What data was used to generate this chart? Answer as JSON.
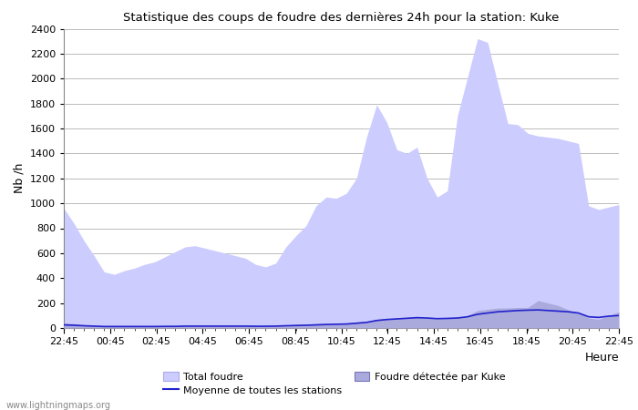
{
  "title": "Statistique des coups de foudre des dernières 24h pour la station: Kuke",
  "xlabel": "Heure",
  "ylabel": "Nb /h",
  "watermark": "www.lightningmaps.org",
  "x_labels": [
    "22:45",
    "00:45",
    "02:45",
    "04:45",
    "06:45",
    "08:45",
    "10:45",
    "12:45",
    "14:45",
    "16:45",
    "18:45",
    "20:45",
    "22:45"
  ],
  "ylim": [
    0,
    2400
  ],
  "yticks": [
    0,
    200,
    400,
    600,
    800,
    1000,
    1200,
    1400,
    1600,
    1800,
    2000,
    2200,
    2400
  ],
  "total_foudre_color": "#ccccff",
  "total_foudre_edge": "#aaaaee",
  "kuke_color": "#aaaadd",
  "kuke_edge": "#7777bb",
  "moyenne_color": "#2222cc",
  "bg_color": "#ffffff",
  "grid_color": "#bbbbbb",
  "legend_labels": [
    "Total foudre",
    "Moyenne de toutes les stations",
    "Foudre détectée par Kuke"
  ],
  "total_foudre": [
    960,
    840,
    700,
    580,
    450,
    430,
    460,
    480,
    510,
    530,
    570,
    610,
    650,
    660,
    640,
    620,
    600,
    580,
    560,
    510,
    490,
    520,
    650,
    740,
    820,
    980,
    1050,
    1040,
    1080,
    1200,
    1530,
    1790,
    1650,
    1430,
    1400,
    1450,
    1200,
    1050,
    1100,
    1700,
    2010,
    2320,
    2290,
    1960,
    1640,
    1630,
    1560,
    1540,
    1530,
    1520,
    1500,
    1480,
    980,
    950,
    970,
    990
  ],
  "kuke_detected": [
    40,
    35,
    25,
    20,
    15,
    15,
    15,
    15,
    15,
    15,
    18,
    18,
    20,
    20,
    20,
    20,
    20,
    20,
    20,
    18,
    18,
    20,
    25,
    28,
    30,
    35,
    38,
    38,
    40,
    50,
    55,
    70,
    75,
    78,
    80,
    85,
    80,
    75,
    78,
    82,
    100,
    140,
    150,
    160,
    160,
    165,
    165,
    220,
    200,
    180,
    145,
    125,
    80,
    70,
    100,
    130
  ],
  "moyenne": [
    25,
    22,
    18,
    15,
    12,
    12,
    12,
    12,
    12,
    12,
    13,
    13,
    15,
    15,
    15,
    15,
    15,
    15,
    15,
    14,
    14,
    15,
    18,
    20,
    22,
    25,
    28,
    30,
    32,
    38,
    45,
    60,
    68,
    73,
    78,
    83,
    80,
    75,
    77,
    80,
    90,
    110,
    120,
    130,
    135,
    140,
    143,
    145,
    140,
    135,
    130,
    120,
    90,
    85,
    95,
    100
  ]
}
